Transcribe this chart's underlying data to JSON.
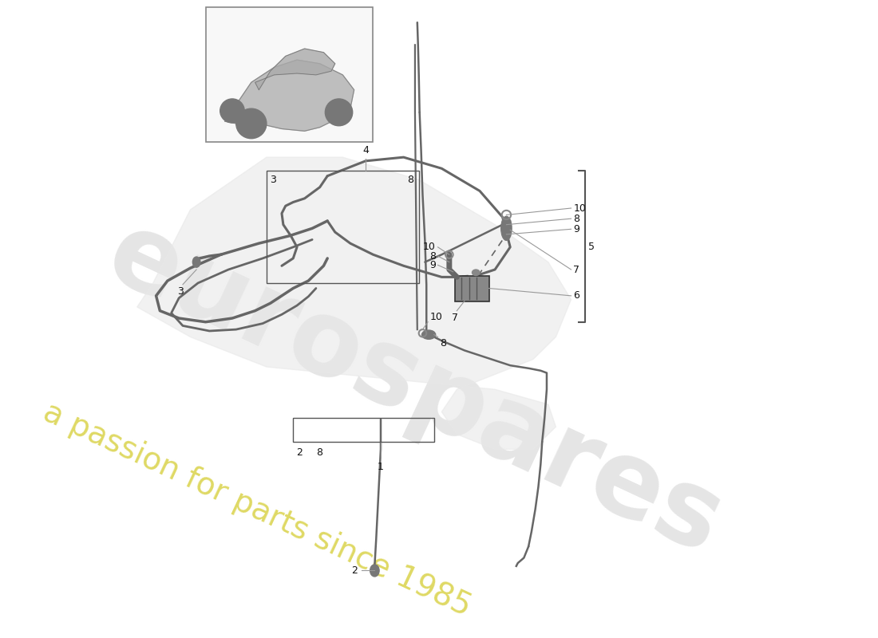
{
  "bg_color": "#ffffff",
  "fig_width": 11.0,
  "fig_height": 8.0,
  "dpi": 100,
  "watermark_text1": "eurospares",
  "watermark_text2": "a passion for parts since 1985",
  "watermark_color1": "#cccccc",
  "watermark_color2": "#d4cc30",
  "label_color": "#111111",
  "line_color": "#555555",
  "tube_color": "#666666",
  "ref_line_color": "#888888"
}
